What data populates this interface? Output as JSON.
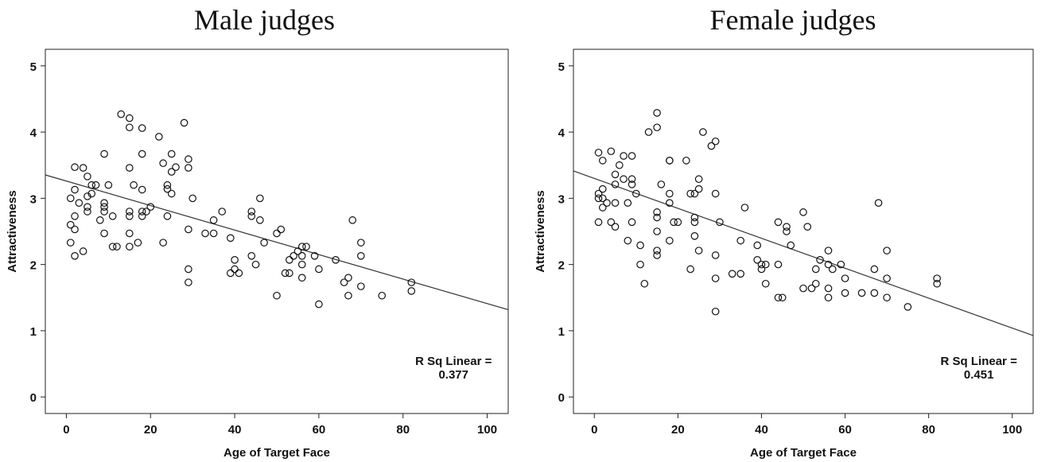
{
  "chart_data": [
    {
      "type": "scatter",
      "title": "Male judges",
      "xlabel": "Age of Target Face",
      "ylabel": "Attractiveness",
      "xlim": [
        -5,
        105
      ],
      "ylim": [
        -0.25,
        5.25
      ],
      "xticks": [
        0,
        20,
        40,
        60,
        80,
        100
      ],
      "yticks": [
        0,
        1,
        2,
        3,
        4,
        5
      ],
      "fit_line": {
        "intercept": 3.26,
        "slope": -0.0185
      },
      "r_sq_label": "R Sq Linear =",
      "r_sq_value": "0.377",
      "points": [
        [
          13,
          4.27
        ],
        [
          15,
          4.21
        ],
        [
          28,
          4.14
        ],
        [
          15,
          4.07
        ],
        [
          18,
          4.06
        ],
        [
          22,
          3.93
        ],
        [
          9,
          3.67
        ],
        [
          18,
          3.67
        ],
        [
          25,
          3.67
        ],
        [
          23,
          3.53
        ],
        [
          29,
          3.59
        ],
        [
          26,
          3.47
        ],
        [
          2,
          3.47
        ],
        [
          4,
          3.46
        ],
        [
          15,
          3.46
        ],
        [
          29,
          3.46
        ],
        [
          25,
          3.4
        ],
        [
          5,
          3.33
        ],
        [
          6,
          3.2
        ],
        [
          7,
          3.2
        ],
        [
          10,
          3.2
        ],
        [
          16,
          3.2
        ],
        [
          24,
          3.2
        ],
        [
          24,
          3.14
        ],
        [
          18,
          3.13
        ],
        [
          2,
          3.13
        ],
        [
          25,
          3.07
        ],
        [
          6,
          3.07
        ],
        [
          5,
          3.03
        ],
        [
          1,
          3.0
        ],
        [
          30,
          3.0
        ],
        [
          46,
          3.0
        ],
        [
          3,
          2.93
        ],
        [
          9,
          2.93
        ],
        [
          5,
          2.87
        ],
        [
          9,
          2.87
        ],
        [
          20,
          2.87
        ],
        [
          18,
          2.8
        ],
        [
          15,
          2.8
        ],
        [
          19,
          2.8
        ],
        [
          37,
          2.8
        ],
        [
          44,
          2.8
        ],
        [
          5,
          2.8
        ],
        [
          9,
          2.8
        ],
        [
          2,
          2.73
        ],
        [
          15,
          2.73
        ],
        [
          18,
          2.73
        ],
        [
          24,
          2.73
        ],
        [
          11,
          2.73
        ],
        [
          8,
          2.67
        ],
        [
          35,
          2.67
        ],
        [
          44,
          2.73
        ],
        [
          1,
          2.6
        ],
        [
          46,
          2.67
        ],
        [
          68,
          2.67
        ],
        [
          2,
          2.53
        ],
        [
          29,
          2.53
        ],
        [
          51,
          2.53
        ],
        [
          15,
          2.47
        ],
        [
          9,
          2.47
        ],
        [
          33,
          2.47
        ],
        [
          35,
          2.47
        ],
        [
          50,
          2.47
        ],
        [
          39,
          2.4
        ],
        [
          17,
          2.33
        ],
        [
          23,
          2.33
        ],
        [
          1,
          2.33
        ],
        [
          47,
          2.33
        ],
        [
          70,
          2.33
        ],
        [
          11,
          2.27
        ],
        [
          12,
          2.27
        ],
        [
          15,
          2.27
        ],
        [
          56,
          2.27
        ],
        [
          57,
          2.27
        ],
        [
          55,
          2.2
        ],
        [
          4,
          2.2
        ],
        [
          2,
          2.13
        ],
        [
          44,
          2.13
        ],
        [
          54,
          2.13
        ],
        [
          56,
          2.13
        ],
        [
          59,
          2.13
        ],
        [
          70,
          2.13
        ],
        [
          40,
          2.07
        ],
        [
          53,
          2.07
        ],
        [
          64,
          2.07
        ],
        [
          45,
          2.0
        ],
        [
          56,
          2.0
        ],
        [
          29,
          1.93
        ],
        [
          40,
          1.93
        ],
        [
          60,
          1.93
        ],
        [
          39,
          1.87
        ],
        [
          41,
          1.87
        ],
        [
          52,
          1.87
        ],
        [
          53,
          1.87
        ],
        [
          56,
          1.8
        ],
        [
          67,
          1.8
        ],
        [
          29,
          1.73
        ],
        [
          66,
          1.73
        ],
        [
          82,
          1.73
        ],
        [
          70,
          1.67
        ],
        [
          82,
          1.6
        ],
        [
          50,
          1.53
        ],
        [
          67,
          1.53
        ],
        [
          75,
          1.53
        ],
        [
          60,
          1.4
        ]
      ]
    },
    {
      "type": "scatter",
      "title": "Female judges",
      "xlabel": "Age of Target Face",
      "ylabel": "Attractiveness",
      "xlim": [
        -5,
        105
      ],
      "ylim": [
        -0.25,
        5.25
      ],
      "xticks": [
        0,
        20,
        40,
        60,
        80,
        100
      ],
      "yticks": [
        0,
        1,
        2,
        3,
        4,
        5
      ],
      "fit_line": {
        "intercept": 3.3,
        "slope": -0.0226
      },
      "r_sq_label": "R Sq Linear =",
      "r_sq_value": "0.451",
      "points": [
        [
          15,
          4.29
        ],
        [
          15,
          4.07
        ],
        [
          13,
          4.0
        ],
        [
          26,
          4.0
        ],
        [
          29,
          3.86
        ],
        [
          28,
          3.79
        ],
        [
          4,
          3.71
        ],
        [
          1,
          3.69
        ],
        [
          7,
          3.64
        ],
        [
          9,
          3.64
        ],
        [
          2,
          3.57
        ],
        [
          18,
          3.57
        ],
        [
          18,
          3.57
        ],
        [
          22,
          3.57
        ],
        [
          6,
          3.5
        ],
        [
          5,
          3.36
        ],
        [
          7,
          3.29
        ],
        [
          9,
          3.29
        ],
        [
          25,
          3.29
        ],
        [
          9,
          3.21
        ],
        [
          16,
          3.21
        ],
        [
          5,
          3.21
        ],
        [
          2,
          3.14
        ],
        [
          1,
          3.07
        ],
        [
          10,
          3.07
        ],
        [
          18,
          3.07
        ],
        [
          23,
          3.07
        ],
        [
          24,
          3.07
        ],
        [
          25,
          3.14
        ],
        [
          29,
          3.07
        ],
        [
          2,
          3.0
        ],
        [
          1,
          3.0
        ],
        [
          5,
          2.93
        ],
        [
          3,
          2.93
        ],
        [
          8,
          2.93
        ],
        [
          18,
          2.93
        ],
        [
          2,
          2.86
        ],
        [
          36,
          2.86
        ],
        [
          15,
          2.79
        ],
        [
          50,
          2.79
        ],
        [
          68,
          2.93
        ],
        [
          15,
          2.71
        ],
        [
          24,
          2.71
        ],
        [
          1,
          2.64
        ],
        [
          4,
          2.64
        ],
        [
          9,
          2.64
        ],
        [
          19,
          2.64
        ],
        [
          20,
          2.64
        ],
        [
          24,
          2.64
        ],
        [
          30,
          2.64
        ],
        [
          44,
          2.64
        ],
        [
          5,
          2.57
        ],
        [
          46,
          2.57
        ],
        [
          51,
          2.57
        ],
        [
          46,
          2.5
        ],
        [
          15,
          2.5
        ],
        [
          24,
          2.43
        ],
        [
          18,
          2.36
        ],
        [
          35,
          2.36
        ],
        [
          8,
          2.36
        ],
        [
          11,
          2.29
        ],
        [
          47,
          2.29
        ],
        [
          39,
          2.29
        ],
        [
          15,
          2.21
        ],
        [
          25,
          2.21
        ],
        [
          56,
          2.21
        ],
        [
          70,
          2.21
        ],
        [
          15,
          2.14
        ],
        [
          29,
          2.14
        ],
        [
          54,
          2.07
        ],
        [
          39,
          2.07
        ],
        [
          41,
          2.0
        ],
        [
          56,
          2.0
        ],
        [
          11,
          2.0
        ],
        [
          40,
          2.0
        ],
        [
          44,
          2.0
        ],
        [
          59,
          2.0
        ],
        [
          40,
          1.93
        ],
        [
          53,
          1.93
        ],
        [
          23,
          1.93
        ],
        [
          57,
          1.93
        ],
        [
          67,
          1.93
        ],
        [
          33,
          1.86
        ],
        [
          35,
          1.86
        ],
        [
          12,
          1.71
        ],
        [
          41,
          1.71
        ],
        [
          29,
          1.79
        ],
        [
          53,
          1.71
        ],
        [
          60,
          1.79
        ],
        [
          70,
          1.79
        ],
        [
          82,
          1.79
        ],
        [
          82,
          1.71
        ],
        [
          50,
          1.64
        ],
        [
          52,
          1.64
        ],
        [
          56,
          1.64
        ],
        [
          60,
          1.57
        ],
        [
          64,
          1.57
        ],
        [
          67,
          1.57
        ],
        [
          44,
          1.5
        ],
        [
          45,
          1.5
        ],
        [
          56,
          1.5
        ],
        [
          70,
          1.5
        ],
        [
          75,
          1.36
        ],
        [
          29,
          1.29
        ]
      ]
    }
  ]
}
